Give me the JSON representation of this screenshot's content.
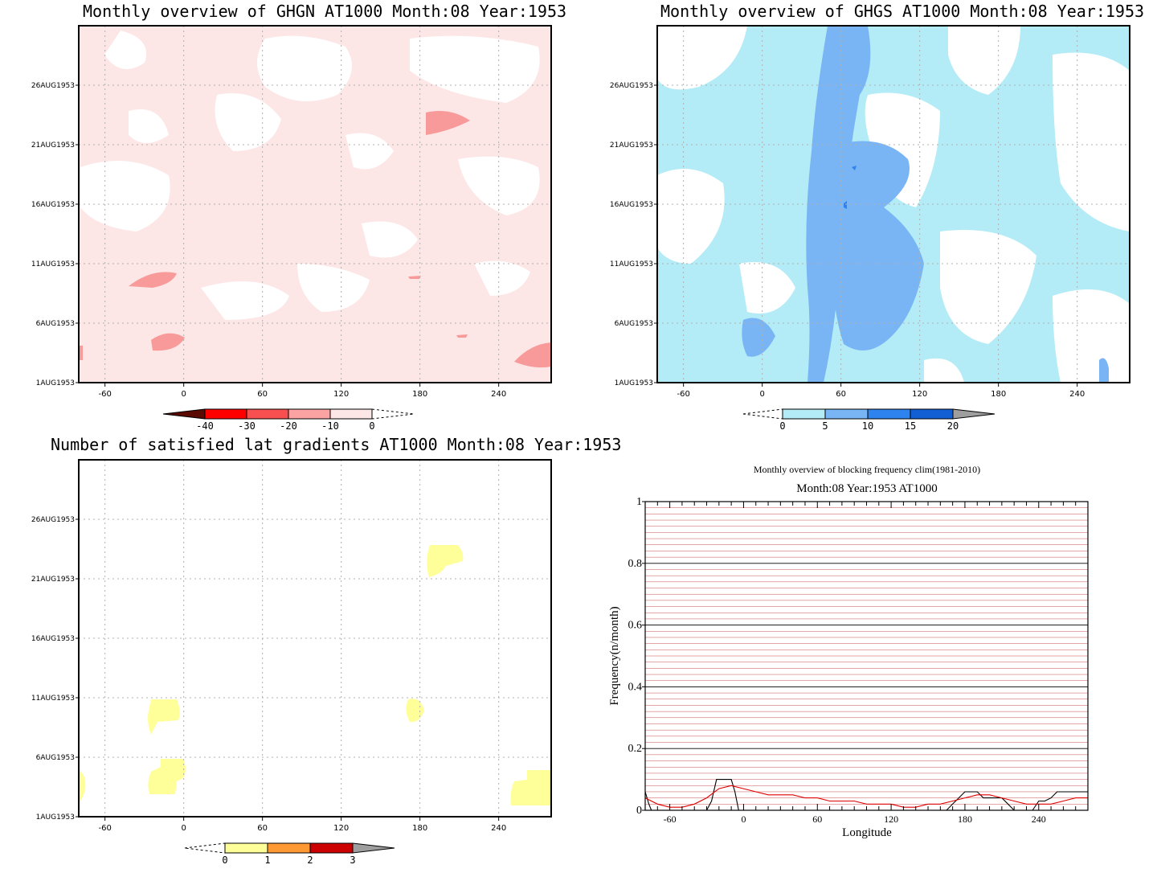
{
  "panels": {
    "ghgn": {
      "title": "Monthly overview of GHGN AT1000 Month:08 Year:1953"
    },
    "ghgs": {
      "title": "Monthly overview of GHGS AT1000 Month:08 Year:1953"
    },
    "gradients": {
      "title": "Number of satisfied lat gradients AT1000 Month:08 Year:1953"
    }
  },
  "map_axes": {
    "x_ticks": [
      "-60",
      "0",
      "60",
      "120",
      "180",
      "240"
    ],
    "x_tick_values": [
      -60,
      0,
      60,
      120,
      180,
      240
    ],
    "xlim": [
      -80,
      280
    ],
    "y_ticks": [
      "1AUG1953",
      "6AUG1953",
      "11AUG1953",
      "16AUG1953",
      "21AUG1953",
      "26AUG1953"
    ],
    "y_tick_values": [
      1,
      6,
      11,
      16,
      21,
      26
    ],
    "ylim": [
      1,
      31
    ]
  },
  "colorbars": {
    "ghgn": {
      "labels": [
        "-40",
        "-30",
        "-20",
        "-10",
        "0"
      ],
      "colors": [
        "#5a0a00",
        "#ff0000",
        "#f85050",
        "#fba3a3",
        "#fde6e6"
      ]
    },
    "ghgs": {
      "labels": [
        "0",
        "5",
        "10",
        "15",
        "20"
      ],
      "colors": [
        "#b3ecf6",
        "#79b5f5",
        "#2e83ef",
        "#125fd3",
        "#9e9e9e"
      ]
    },
    "gradients": {
      "labels": [
        "0",
        "1",
        "2",
        "3"
      ],
      "colors": [
        "#ffff99",
        "#ff9933",
        "#cc0000",
        "#9e9e9e"
      ]
    }
  },
  "chart_data": {
    "type": "line",
    "title": "Monthly overview of blocking frequency clim(1981-2010)",
    "subtitle": "Month:08 Year:1953  AT1000",
    "xlabel": "Longitude",
    "ylabel": "Frequency(n/month)",
    "xlim": [
      -80,
      280
    ],
    "ylim": [
      0,
      1
    ],
    "x_ticks": [
      "-60",
      "0",
      "60",
      "120",
      "180",
      "240"
    ],
    "y_ticks": [
      "0",
      "0.2",
      "0.4",
      "0.6",
      "0.8",
      "1"
    ],
    "grid": true,
    "series": [
      {
        "color": "#000000",
        "x": [
          -80,
          -77,
          -75,
          -30,
          -26,
          -22,
          -18,
          -10,
          -7,
          -4,
          0,
          10,
          60,
          120,
          165,
          170,
          175,
          180,
          185,
          190,
          195,
          200,
          210,
          220,
          230,
          235,
          240,
          245,
          250,
          255,
          260,
          270,
          280
        ],
        "values": [
          0.06,
          0.02,
          0,
          0,
          0.03,
          0.1,
          0.1,
          0.1,
          0.06,
          0,
          0,
          0,
          0,
          0,
          0,
          0.02,
          0.04,
          0.06,
          0.06,
          0.06,
          0.04,
          0.04,
          0.04,
          0,
          0,
          0,
          0.03,
          0.03,
          0.04,
          0.06,
          0.06,
          0.06,
          0.06
        ]
      },
      {
        "color": "#e00000",
        "x": [
          -80,
          -70,
          -60,
          -50,
          -40,
          -30,
          -20,
          -10,
          0,
          10,
          20,
          30,
          40,
          50,
          60,
          70,
          80,
          90,
          100,
          110,
          120,
          130,
          140,
          150,
          160,
          170,
          180,
          190,
          200,
          210,
          220,
          230,
          240,
          250,
          260,
          270,
          280
        ],
        "values": [
          0.04,
          0.02,
          0.01,
          0.01,
          0.02,
          0.04,
          0.07,
          0.08,
          0.07,
          0.06,
          0.05,
          0.05,
          0.05,
          0.04,
          0.04,
          0.03,
          0.03,
          0.03,
          0.02,
          0.02,
          0.02,
          0.01,
          0.01,
          0.02,
          0.02,
          0.03,
          0.04,
          0.05,
          0.05,
          0.04,
          0.03,
          0.02,
          0.02,
          0.02,
          0.03,
          0.04,
          0.04
        ]
      }
    ]
  }
}
